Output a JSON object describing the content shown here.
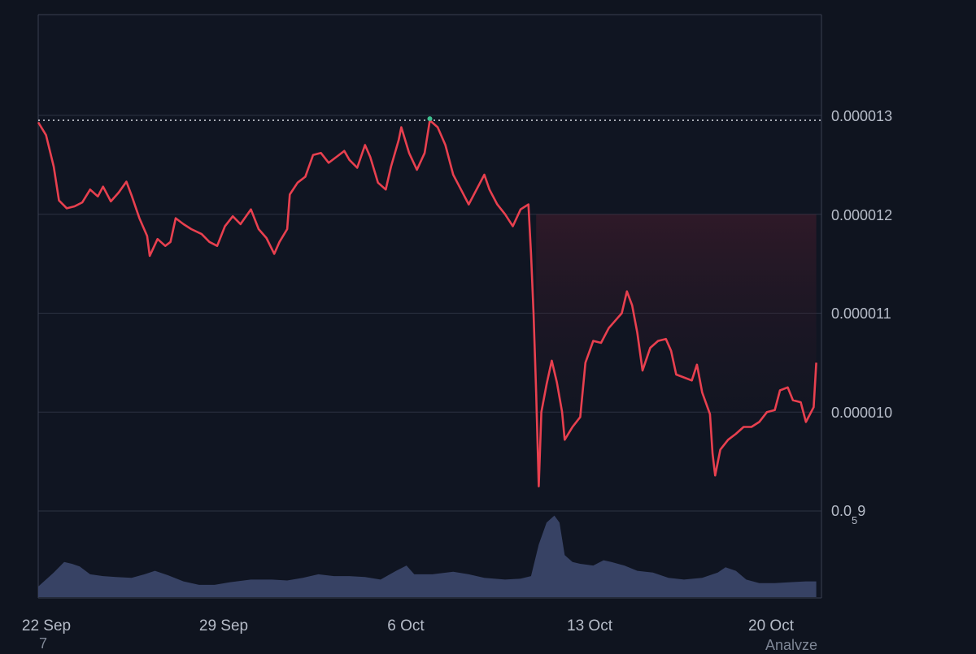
{
  "chart_data": {
    "type": "line",
    "y_tick_labels": [
      "0.000013",
      "0.000012",
      "0.000011",
      "0.000010"
    ],
    "y_tick_values": [
      1.3e-05,
      1.2e-05,
      1.1e-05,
      1e-05
    ],
    "y_small_tick": {
      "prefix": "0.0",
      "subscript": "5",
      "suffix": "9",
      "value": 9e-06
    },
    "x_tick_labels": [
      "22 Sep",
      "29 Sep",
      "6 Oct",
      "13 Oct",
      "20 Oct"
    ],
    "x_tick_days": [
      0,
      7,
      14,
      21,
      28
    ],
    "xlim_days": [
      0,
      30.2
    ],
    "ylim": [
      8.4e-06,
      1.4e-05
    ],
    "reference_line": 1.295e-05,
    "grid": "horizontal",
    "line_color": "#e8404f",
    "peak_marker_color": "#3fbf8f",
    "volume_color": "#3a4468",
    "series": [
      {
        "points": [
          [
            0.0,
            1.293e-05
          ],
          [
            0.3,
            1.28e-05
          ],
          [
            0.6,
            1.248e-05
          ],
          [
            0.8,
            1.214e-05
          ],
          [
            1.1,
            1.206e-05
          ],
          [
            1.4,
            1.208e-05
          ],
          [
            1.7,
            1.212e-05
          ],
          [
            2.0,
            1.225e-05
          ],
          [
            2.3,
            1.218e-05
          ],
          [
            2.5,
            1.228e-05
          ],
          [
            2.8,
            1.213e-05
          ],
          [
            3.1,
            1.222e-05
          ],
          [
            3.4,
            1.233e-05
          ],
          [
            3.6,
            1.219e-05
          ],
          [
            3.9,
            1.196e-05
          ],
          [
            4.2,
            1.178e-05
          ],
          [
            4.3,
            1.158e-05
          ],
          [
            4.6,
            1.175e-05
          ],
          [
            4.9,
            1.168e-05
          ],
          [
            5.1,
            1.172e-05
          ],
          [
            5.3,
            1.196e-05
          ],
          [
            5.6,
            1.19e-05
          ],
          [
            5.9,
            1.185e-05
          ],
          [
            6.3,
            1.18e-05
          ],
          [
            6.6,
            1.172e-05
          ],
          [
            6.9,
            1.168e-05
          ],
          [
            7.2,
            1.188e-05
          ],
          [
            7.5,
            1.198e-05
          ],
          [
            7.8,
            1.19e-05
          ],
          [
            8.2,
            1.205e-05
          ],
          [
            8.5,
            1.185e-05
          ],
          [
            8.8,
            1.176e-05
          ],
          [
            9.1,
            1.16e-05
          ],
          [
            9.3,
            1.172e-05
          ],
          [
            9.6,
            1.185e-05
          ],
          [
            9.7,
            1.22e-05
          ],
          [
            10.0,
            1.232e-05
          ],
          [
            10.3,
            1.238e-05
          ],
          [
            10.6,
            1.26e-05
          ],
          [
            10.9,
            1.262e-05
          ],
          [
            11.2,
            1.252e-05
          ],
          [
            11.5,
            1.258e-05
          ],
          [
            11.8,
            1.264e-05
          ],
          [
            12.0,
            1.255e-05
          ],
          [
            12.3,
            1.247e-05
          ],
          [
            12.6,
            1.27e-05
          ],
          [
            12.8,
            1.258e-05
          ],
          [
            13.1,
            1.232e-05
          ],
          [
            13.4,
            1.225e-05
          ],
          [
            13.6,
            1.248e-05
          ],
          [
            13.9,
            1.275e-05
          ],
          [
            14.0,
            1.288e-05
          ],
          [
            14.3,
            1.262e-05
          ],
          [
            14.6,
            1.245e-05
          ],
          [
            14.9,
            1.262e-05
          ],
          [
            15.1,
            1.295e-05
          ],
          [
            15.4,
            1.288e-05
          ],
          [
            15.7,
            1.27e-05
          ],
          [
            16.0,
            1.24e-05
          ],
          [
            16.3,
            1.225e-05
          ],
          [
            16.6,
            1.21e-05
          ],
          [
            16.9,
            1.225e-05
          ],
          [
            17.2,
            1.24e-05
          ],
          [
            17.4,
            1.225e-05
          ],
          [
            17.7,
            1.21e-05
          ],
          [
            18.0,
            1.2e-05
          ],
          [
            18.3,
            1.188e-05
          ],
          [
            18.6,
            1.205e-05
          ],
          [
            18.9,
            1.21e-05
          ],
          [
            19.0,
            1.16e-05
          ],
          [
            19.1,
            1.1e-05
          ],
          [
            19.2,
            1.02e-05
          ],
          [
            19.3,
            9.25e-06
          ],
          [
            19.4,
            1e-05
          ],
          [
            19.6,
            1.028e-05
          ],
          [
            19.8,
            1.052e-05
          ],
          [
            20.0,
            1.03e-05
          ],
          [
            20.2,
            1e-05
          ],
          [
            20.3,
            9.72e-06
          ],
          [
            20.6,
            9.85e-06
          ],
          [
            20.9,
            9.95e-06
          ],
          [
            21.1,
            1.05e-05
          ],
          [
            21.4,
            1.072e-05
          ],
          [
            21.7,
            1.07e-05
          ],
          [
            22.0,
            1.085e-05
          ],
          [
            22.3,
            1.094e-05
          ],
          [
            22.5,
            1.1e-05
          ],
          [
            22.7,
            1.122e-05
          ],
          [
            22.9,
            1.108e-05
          ],
          [
            23.1,
            1.08e-05
          ],
          [
            23.3,
            1.042e-05
          ],
          [
            23.6,
            1.065e-05
          ],
          [
            23.9,
            1.072e-05
          ],
          [
            24.2,
            1.074e-05
          ],
          [
            24.4,
            1.062e-05
          ],
          [
            24.6,
            1.038e-05
          ],
          [
            24.9,
            1.035e-05
          ],
          [
            25.2,
            1.032e-05
          ],
          [
            25.4,
            1.048e-05
          ],
          [
            25.6,
            1.02e-05
          ],
          [
            25.9,
            9.98e-06
          ],
          [
            26.0,
            9.58e-06
          ],
          [
            26.1,
            9.36e-06
          ],
          [
            26.3,
            9.62e-06
          ],
          [
            26.6,
            9.72e-06
          ],
          [
            26.9,
            9.78e-06
          ],
          [
            27.2,
            9.85e-06
          ],
          [
            27.5,
            9.85e-06
          ],
          [
            27.8,
            9.9e-06
          ],
          [
            28.1,
            1e-05
          ],
          [
            28.4,
            1.002e-05
          ],
          [
            28.6,
            1.022e-05
          ],
          [
            28.9,
            1.025e-05
          ],
          [
            29.1,
            1.012e-05
          ],
          [
            29.4,
            1.01e-05
          ],
          [
            29.6,
            9.9e-06
          ],
          [
            29.9,
            1.005e-05
          ],
          [
            30.0,
            1.05e-05
          ]
        ]
      }
    ],
    "volume": [
      [
        0.0,
        0.12
      ],
      [
        0.6,
        0.28
      ],
      [
        1.0,
        0.4
      ],
      [
        1.3,
        0.38
      ],
      [
        1.6,
        0.35
      ],
      [
        2.0,
        0.26
      ],
      [
        2.5,
        0.24
      ],
      [
        3.0,
        0.23
      ],
      [
        3.6,
        0.22
      ],
      [
        4.1,
        0.26
      ],
      [
        4.5,
        0.3
      ],
      [
        5.0,
        0.25
      ],
      [
        5.6,
        0.18
      ],
      [
        6.2,
        0.14
      ],
      [
        6.8,
        0.14
      ],
      [
        7.4,
        0.17
      ],
      [
        8.2,
        0.2
      ],
      [
        9.0,
        0.2
      ],
      [
        9.6,
        0.19
      ],
      [
        10.2,
        0.22
      ],
      [
        10.8,
        0.26
      ],
      [
        11.4,
        0.24
      ],
      [
        12.0,
        0.24
      ],
      [
        12.6,
        0.23
      ],
      [
        13.2,
        0.2
      ],
      [
        13.8,
        0.3
      ],
      [
        14.2,
        0.36
      ],
      [
        14.5,
        0.26
      ],
      [
        15.2,
        0.26
      ],
      [
        16.0,
        0.29
      ],
      [
        16.6,
        0.26
      ],
      [
        17.2,
        0.22
      ],
      [
        18.0,
        0.2
      ],
      [
        18.6,
        0.21
      ],
      [
        19.0,
        0.24
      ],
      [
        19.3,
        0.6
      ],
      [
        19.6,
        0.85
      ],
      [
        19.9,
        0.93
      ],
      [
        20.1,
        0.85
      ],
      [
        20.3,
        0.48
      ],
      [
        20.6,
        0.4
      ],
      [
        20.9,
        0.38
      ],
      [
        21.4,
        0.36
      ],
      [
        21.8,
        0.42
      ],
      [
        22.1,
        0.4
      ],
      [
        22.6,
        0.36
      ],
      [
        23.1,
        0.3
      ],
      [
        23.7,
        0.28
      ],
      [
        24.3,
        0.22
      ],
      [
        24.9,
        0.2
      ],
      [
        25.6,
        0.22
      ],
      [
        26.2,
        0.28
      ],
      [
        26.5,
        0.34
      ],
      [
        26.9,
        0.3
      ],
      [
        27.3,
        0.2
      ],
      [
        27.8,
        0.16
      ],
      [
        28.4,
        0.16
      ],
      [
        29.0,
        0.17
      ],
      [
        29.6,
        0.18
      ],
      [
        30.0,
        0.18
      ]
    ]
  },
  "footer": {
    "first_tick_subscript": "7",
    "corner_label": "Analyze"
  }
}
